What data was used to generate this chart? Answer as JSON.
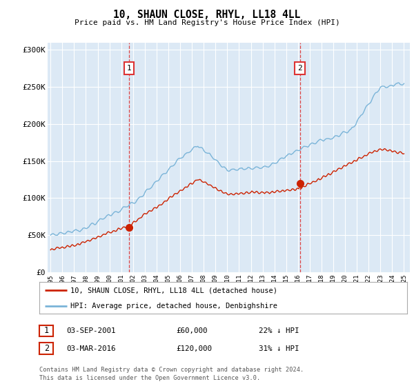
{
  "title": "10, SHAUN CLOSE, RHYL, LL18 4LL",
  "subtitle": "Price paid vs. HM Land Registry's House Price Index (HPI)",
  "background_color": "#dce9f5",
  "hpi_color": "#7ab4d8",
  "price_color": "#cc2200",
  "vline_color": "#dd3333",
  "ylim": [
    0,
    310000
  ],
  "yticks": [
    0,
    50000,
    100000,
    150000,
    200000,
    250000,
    300000
  ],
  "ytick_labels": [
    "£0",
    "£50K",
    "£100K",
    "£150K",
    "£200K",
    "£250K",
    "£300K"
  ],
  "x_start_year": 1995,
  "x_end_year": 2025,
  "sale1_year": 2001.67,
  "sale1_price": 60000,
  "sale2_year": 2016.17,
  "sale2_price": 120000,
  "legend_line1": "10, SHAUN CLOSE, RHYL, LL18 4LL (detached house)",
  "legend_line2": "HPI: Average price, detached house, Denbighshire",
  "ann1": [
    "1",
    "03-SEP-2001",
    "£60,000",
    "22% ↓ HPI"
  ],
  "ann2": [
    "2",
    "03-MAR-2016",
    "£120,000",
    "31% ↓ HPI"
  ],
  "footer1": "Contains HM Land Registry data © Crown copyright and database right 2024.",
  "footer2": "This data is licensed under the Open Government Licence v3.0."
}
